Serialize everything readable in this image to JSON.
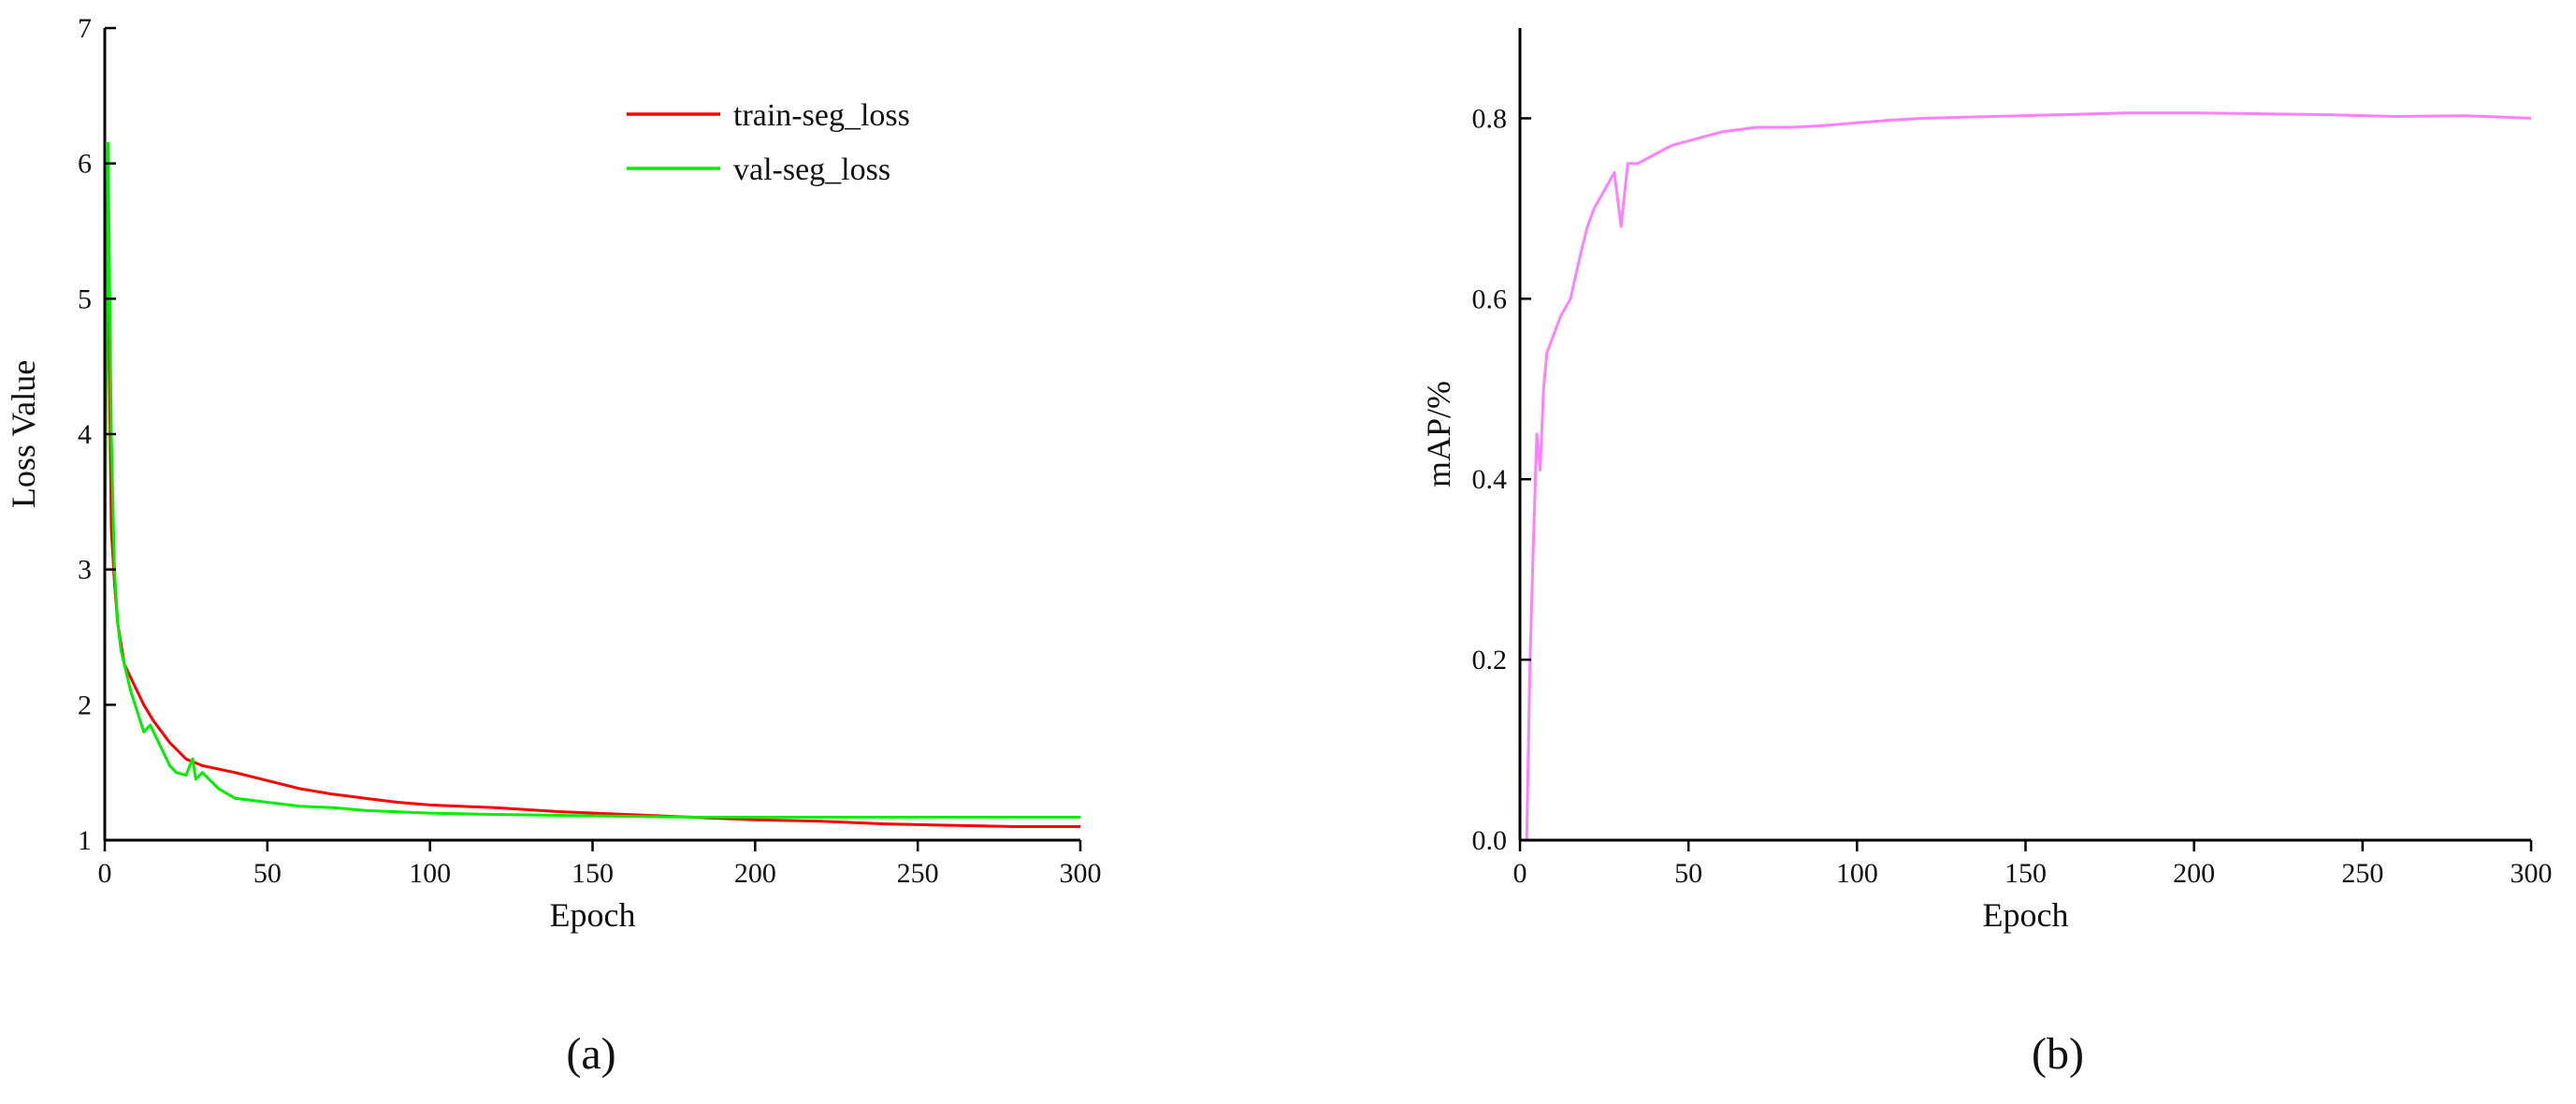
{
  "chart_data": [
    {
      "type": "line",
      "panel_label": "(a)",
      "xlabel": "Epoch",
      "ylabel": "Loss Value",
      "xlim": [
        0,
        300
      ],
      "ylim": [
        1,
        7
      ],
      "xticks": [
        "0",
        "50",
        "100",
        "150",
        "200",
        "250",
        "300"
      ],
      "yticks": [
        "1",
        "2",
        "3",
        "4",
        "5",
        "6",
        "7"
      ],
      "grid": false,
      "legend_position": "top-right",
      "series": [
        {
          "name": "train-seg_loss",
          "color": "#ff0000",
          "x": [
            0,
            1,
            2,
            3,
            4,
            5,
            6,
            8,
            10,
            12,
            15,
            20,
            25,
            30,
            40,
            50,
            60,
            70,
            80,
            90,
            100,
            120,
            140,
            160,
            180,
            200,
            220,
            240,
            260,
            280,
            300
          ],
          "y": [
            4.5,
            5.27,
            3.3,
            2.9,
            2.6,
            2.45,
            2.3,
            2.2,
            2.1,
            2.0,
            1.88,
            1.72,
            1.6,
            1.55,
            1.5,
            1.44,
            1.38,
            1.34,
            1.31,
            1.28,
            1.26,
            1.24,
            1.21,
            1.19,
            1.17,
            1.15,
            1.14,
            1.12,
            1.11,
            1.1,
            1.1
          ]
        },
        {
          "name": "val-seg_loss",
          "color": "#00ee00",
          "x": [
            0,
            1,
            2,
            3,
            4,
            5,
            6,
            8,
            10,
            12,
            14,
            16,
            18,
            20,
            22,
            25,
            27,
            28,
            30,
            35,
            40,
            50,
            60,
            70,
            80,
            100,
            120,
            150,
            180,
            200,
            250,
            300
          ],
          "y": [
            3.0,
            6.15,
            4.0,
            3.0,
            2.6,
            2.4,
            2.3,
            2.1,
            1.95,
            1.8,
            1.85,
            1.75,
            1.65,
            1.55,
            1.5,
            1.48,
            1.6,
            1.45,
            1.5,
            1.38,
            1.31,
            1.28,
            1.25,
            1.24,
            1.22,
            1.2,
            1.19,
            1.18,
            1.17,
            1.17,
            1.17,
            1.17
          ]
        }
      ]
    },
    {
      "type": "line",
      "panel_label": "(b)",
      "xlabel": "Epoch",
      "ylabel": "mAP/%",
      "xlim": [
        0,
        300
      ],
      "ylim": [
        0,
        0.9
      ],
      "xticks": [
        "0",
        "50",
        "100",
        "150",
        "200",
        "250",
        "300"
      ],
      "yticks": [
        "0.0",
        "0.2",
        "0.4",
        "0.6",
        "0.8"
      ],
      "grid": false,
      "series": [
        {
          "color": "#ff80ff",
          "x": [
            2,
            3,
            4,
            5,
            6,
            7,
            8,
            10,
            12,
            15,
            18,
            20,
            22,
            25,
            28,
            30,
            32,
            35,
            40,
            45,
            50,
            55,
            60,
            70,
            80,
            90,
            100,
            110,
            120,
            140,
            160,
            180,
            200,
            220,
            240,
            260,
            280,
            300
          ],
          "y": [
            0.0,
            0.2,
            0.33,
            0.45,
            0.41,
            0.5,
            0.54,
            0.56,
            0.58,
            0.6,
            0.65,
            0.68,
            0.7,
            0.72,
            0.74,
            0.68,
            0.75,
            0.75,
            0.76,
            0.77,
            0.775,
            0.78,
            0.785,
            0.79,
            0.79,
            0.792,
            0.795,
            0.798,
            0.8,
            0.802,
            0.804,
            0.806,
            0.806,
            0.805,
            0.804,
            0.802,
            0.803,
            0.8
          ]
        }
      ]
    }
  ]
}
